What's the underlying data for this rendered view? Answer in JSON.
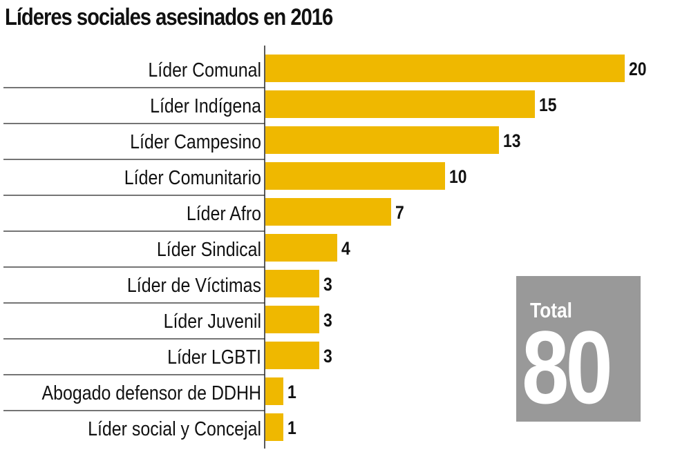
{
  "chart_data": {
    "type": "bar",
    "orientation": "horizontal",
    "title": "Líderes sociales asesinados en 2016",
    "xlabel": "",
    "ylabel": "",
    "categories": [
      "Líder Comunal",
      "Líder Indígena",
      "Líder Campesino",
      "Líder Comunitario",
      "Líder Afro",
      "Líder Sindical",
      "Líder de Víctimas",
      "Líder Juvenil",
      "Líder LGBTI",
      "Abogado defensor de DDHH",
      "Líder social y Concejal"
    ],
    "values": [
      20,
      15,
      13,
      10,
      7,
      4,
      3,
      3,
      3,
      1,
      1
    ],
    "xlim": [
      0,
      20
    ],
    "grid": false,
    "bar_color": "#efb800",
    "data_labels": true
  },
  "total": {
    "label": "Total",
    "value": "80",
    "box_color": "#999999"
  }
}
